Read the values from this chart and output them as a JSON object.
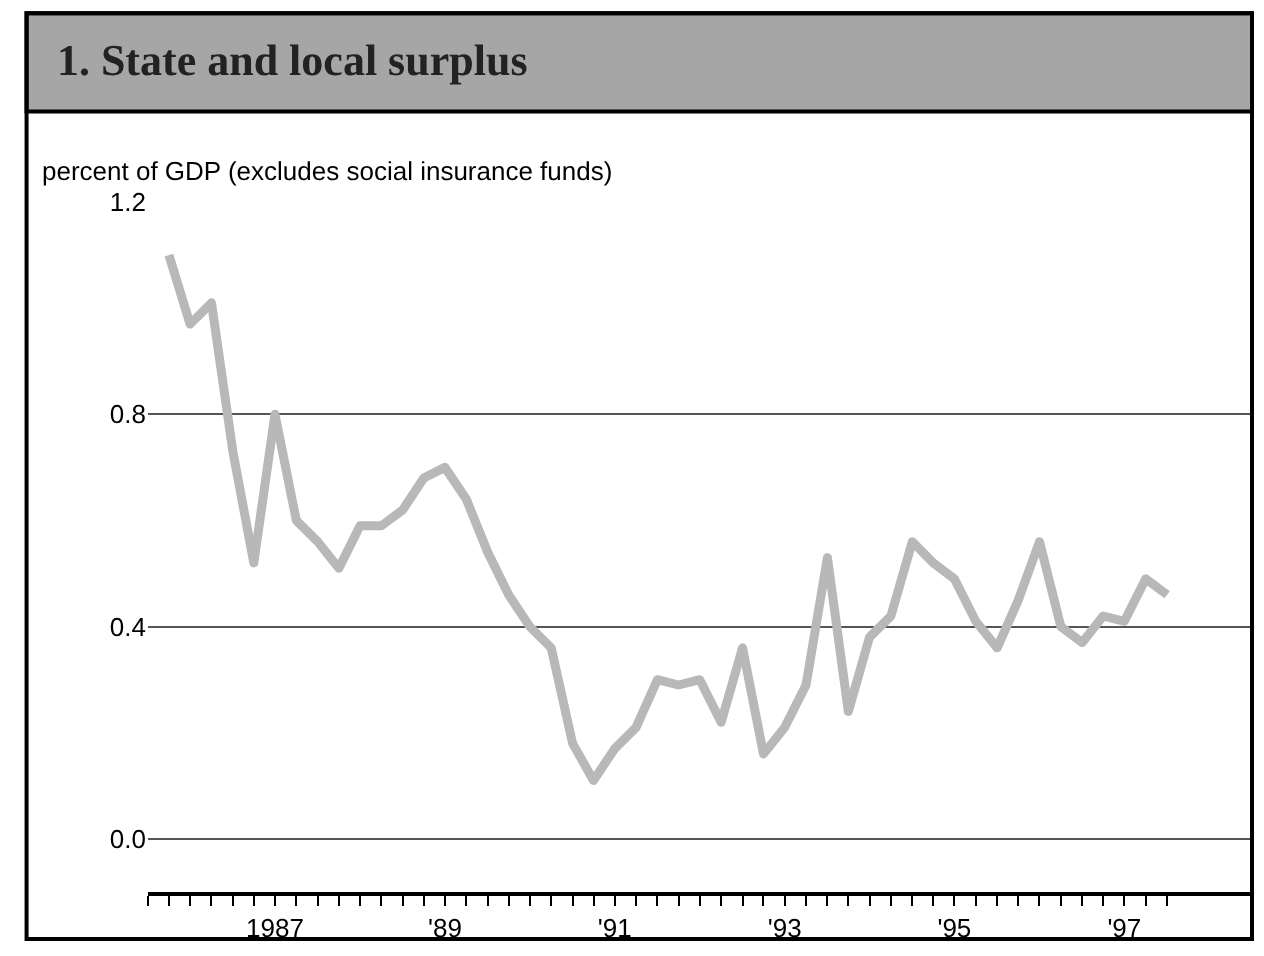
{
  "chart_data": {
    "type": "line",
    "title": "1. State and local surplus",
    "ylabel": "percent of GDP (excludes social insurance funds)",
    "x": [
      "1986-04",
      "1986-07",
      "1986-10",
      "1987-01",
      "1987-04",
      "1987-07",
      "1987-10",
      "1988-01",
      "1988-04",
      "1988-07",
      "1988-10",
      "1989-01",
      "1989-04",
      "1989-07",
      "1989-10",
      "1990-01",
      "1990-04",
      "1990-07",
      "1990-10",
      "1991-01",
      "1991-04",
      "1991-07",
      "1991-10",
      "1992-01",
      "1992-04",
      "1992-07",
      "1992-10",
      "1993-01",
      "1993-04",
      "1993-07",
      "1993-10",
      "1994-01",
      "1994-04",
      "1994-07",
      "1994-10",
      "1995-01",
      "1995-04",
      "1995-07",
      "1995-10",
      "1996-01",
      "1996-04",
      "1996-07",
      "1996-10",
      "1997-01",
      "1997-04",
      "1997-07",
      "1997-10",
      "1998-01"
    ],
    "series": [
      {
        "color": "#b8b8b8",
        "values": [
          1.1,
          0.97,
          1.01,
          0.73,
          0.52,
          0.8,
          0.6,
          0.56,
          0.51,
          0.59,
          0.59,
          0.62,
          0.68,
          0.7,
          0.64,
          0.54,
          0.46,
          0.4,
          0.36,
          0.18,
          0.11,
          0.17,
          0.21,
          0.3,
          0.29,
          0.3,
          0.22,
          0.36,
          0.16,
          0.21,
          0.29,
          0.53,
          0.24,
          0.38,
          0.42,
          0.56,
          0.52,
          0.49,
          0.41,
          0.36,
          0.45,
          0.56,
          0.4,
          0.37,
          0.42,
          0.41,
          0.49,
          0.46
        ]
      }
    ],
    "xlim": [
      "1986-01",
      "1999-01"
    ],
    "ylim": [
      -0.1,
      1.2
    ],
    "xticks": [
      {
        "value": "1986-01",
        "label": null
      },
      {
        "value": "1986-04",
        "label": null
      },
      {
        "value": "1986-07",
        "label": null
      },
      {
        "value": "1986-10",
        "label": null
      },
      {
        "value": "1987-01",
        "label": null
      },
      {
        "value": "1987-04",
        "label": null
      },
      {
        "value": "1987-07",
        "label": "1987"
      },
      {
        "value": "1987-10",
        "label": null
      },
      {
        "value": "1988-01",
        "label": null
      },
      {
        "value": "1988-04",
        "label": null
      },
      {
        "value": "1988-07",
        "label": null
      },
      {
        "value": "1988-10",
        "label": null
      },
      {
        "value": "1989-01",
        "label": null
      },
      {
        "value": "1989-04",
        "label": null
      },
      {
        "value": "1989-07",
        "label": "'89"
      },
      {
        "value": "1989-10",
        "label": null
      },
      {
        "value": "1990-01",
        "label": null
      },
      {
        "value": "1990-04",
        "label": null
      },
      {
        "value": "1990-07",
        "label": null
      },
      {
        "value": "1990-10",
        "label": null
      },
      {
        "value": "1991-01",
        "label": null
      },
      {
        "value": "1991-04",
        "label": null
      },
      {
        "value": "1991-07",
        "label": "'91"
      },
      {
        "value": "1991-10",
        "label": null
      },
      {
        "value": "1992-01",
        "label": null
      },
      {
        "value": "1992-04",
        "label": null
      },
      {
        "value": "1992-07",
        "label": null
      },
      {
        "value": "1992-10",
        "label": null
      },
      {
        "value": "1993-01",
        "label": null
      },
      {
        "value": "1993-04",
        "label": null
      },
      {
        "value": "1993-07",
        "label": "'93"
      },
      {
        "value": "1993-10",
        "label": null
      },
      {
        "value": "1994-01",
        "label": null
      },
      {
        "value": "1994-04",
        "label": null
      },
      {
        "value": "1994-07",
        "label": null
      },
      {
        "value": "1994-10",
        "label": null
      },
      {
        "value": "1995-01",
        "label": null
      },
      {
        "value": "1995-04",
        "label": null
      },
      {
        "value": "1995-07",
        "label": "'95"
      },
      {
        "value": "1995-10",
        "label": null
      },
      {
        "value": "1996-01",
        "label": null
      },
      {
        "value": "1996-04",
        "label": null
      },
      {
        "value": "1996-07",
        "label": null
      },
      {
        "value": "1996-10",
        "label": null
      },
      {
        "value": "1997-01",
        "label": null
      },
      {
        "value": "1997-04",
        "label": null
      },
      {
        "value": "1997-07",
        "label": "'97"
      },
      {
        "value": "1997-10",
        "label": null
      },
      {
        "value": "1998-01",
        "label": null
      }
    ],
    "yticks": [
      {
        "value": 0,
        "label": "0.0"
      },
      {
        "value": 0.4,
        "label": "0.4"
      },
      {
        "value": 0.8,
        "label": "0.8"
      },
      {
        "value": 1.2,
        "label": "1.2"
      }
    ],
    "grid": "y",
    "line_style": "solid",
    "marker": "none"
  }
}
